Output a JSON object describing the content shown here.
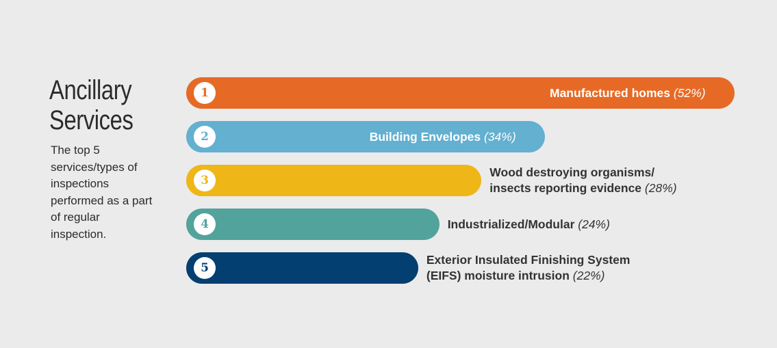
{
  "title_line1": "Ancillary",
  "title_line2": "Services",
  "subtitle": "The top 5 services/types of inspections performed as a part of regular inspection.",
  "chart_data": {
    "type": "bar",
    "orientation": "horizontal",
    "categories": [
      "Manufactured homes",
      "Building Envelopes",
      "Wood destroying organisms/ insects reporting evidence",
      "Industrialized/Modular",
      "Exterior Insulated Finishing System (EIFS) moisture intrusion"
    ],
    "values": [
      52,
      34,
      28,
      24,
      22
    ],
    "unit": "%",
    "xlim": [
      0,
      52
    ],
    "grid": false,
    "bars": [
      {
        "rank": "1",
        "line1": "Manufactured homes",
        "line2": "",
        "pct": "(52%)",
        "value": 52,
        "color": "#e66a26",
        "label_inside": true
      },
      {
        "rank": "2",
        "line1": "Building Envelopes",
        "line2": "",
        "pct": "(34%)",
        "value": 34,
        "color": "#63b0d0",
        "label_inside": true
      },
      {
        "rank": "3",
        "line1": "Wood destroying organisms/",
        "line2": "insects reporting evidence",
        "pct": "(28%)",
        "value": 28,
        "color": "#efb618",
        "label_inside": false
      },
      {
        "rank": "4",
        "line1": "Industrialized/Modular",
        "line2": "",
        "pct": "(24%)",
        "value": 24,
        "color": "#52a39c",
        "label_inside": false
      },
      {
        "rank": "5",
        "line1": "Exterior Insulated Finishing System",
        "line2": "(EIFS) moisture intrusion",
        "pct": "(22%)",
        "value": 22,
        "color": "#033f70",
        "label_inside": false
      }
    ]
  }
}
